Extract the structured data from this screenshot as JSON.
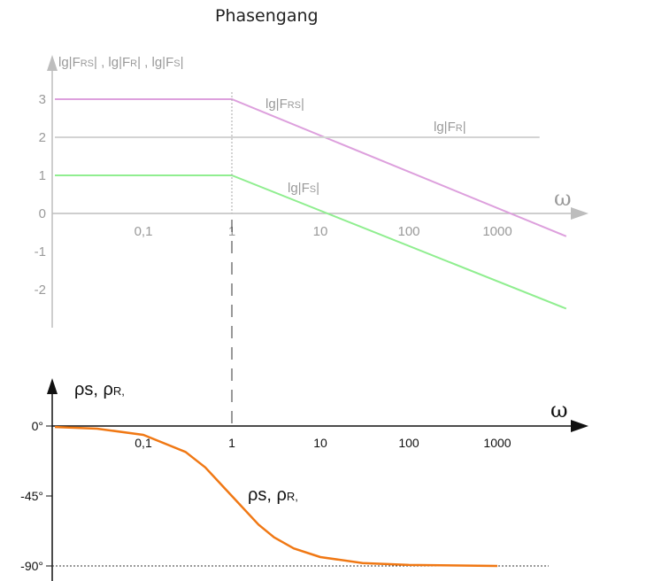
{
  "title": "Phasengang",
  "chart_data": [
    {
      "type": "line",
      "panel": "magnitude",
      "ylabel": {
        "p1": "lg|F",
        "s1": "RS",
        "p2": "| , lg|F",
        "s2": "R",
        "p3": "| , lg|F",
        "s3": "S",
        "p4": "|"
      },
      "xlabel": "ω",
      "x_scale": "log",
      "x_ticks": [
        "0,1",
        "1",
        "10",
        "100",
        "1000"
      ],
      "y_ticks": [
        "3",
        "2",
        "1",
        "0",
        "-1",
        "-2"
      ],
      "ylim": [
        -2.6,
        3.7
      ],
      "series": [
        {
          "name": "lg|FRS|",
          "label": {
            "pre": "lg|F",
            "sub": "RS",
            "post": "|"
          },
          "color": "#dda0dd",
          "x": [
            0.01,
            1,
            6000
          ],
          "y": [
            3,
            3,
            -0.6
          ]
        },
        {
          "name": "lg|FR|",
          "label": {
            "pre": "lg|F",
            "sub": "R",
            "post": "|"
          },
          "color": "#d3d3d3",
          "x": [
            0.01,
            3000
          ],
          "y": [
            2,
            2
          ]
        },
        {
          "name": "lg|FS|",
          "label": {
            "pre": "lg|F",
            "sub": "S",
            "post": "|"
          },
          "color": "#90ee90",
          "x": [
            0.01,
            1,
            6000
          ],
          "y": [
            1,
            1,
            -2.5
          ]
        }
      ],
      "grid": false
    },
    {
      "type": "line",
      "panel": "phase",
      "ylabel": {
        "p1": "ρs",
        "s1": "",
        "p2": ", ρ",
        "s2": "R,"
      },
      "xlabel": "ω",
      "x_scale": "log",
      "x_ticks": [
        "0,1",
        "1",
        "10",
        "100",
        "1000"
      ],
      "y_ticks": [
        "0°",
        "-45°",
        "-90°"
      ],
      "ylim": [
        -92,
        5
      ],
      "curve_label": {
        "p1": "ρs",
        "p2": ", ρ",
        "s2": "R,"
      },
      "series": [
        {
          "name": "phase",
          "color": "#f07814",
          "x": [
            0.01,
            0.03,
            0.1,
            0.3,
            0.5,
            1,
            2,
            3,
            5,
            10,
            30,
            100,
            1000
          ],
          "y": [
            -0.6,
            -1.7,
            -5.7,
            -16.7,
            -26.6,
            -45,
            -63.4,
            -71.6,
            -78.7,
            -84.3,
            -88.1,
            -89.4,
            -90
          ]
        }
      ],
      "reference_line": {
        "y": -90,
        "style": "dotted"
      },
      "grid": false
    }
  ]
}
